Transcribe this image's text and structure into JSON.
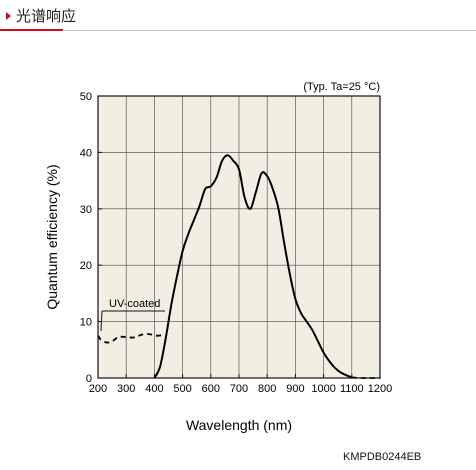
{
  "header": {
    "title": "光谱响应"
  },
  "figure_code": "KMPDB0244EB",
  "chart_data": {
    "type": "line",
    "title": "",
    "condition": "(Typ. Ta=25 °C)",
    "xlabel": "Wavelength (nm)",
    "ylabel": "Quantum efficiency (%)",
    "xlim": [
      200,
      1200
    ],
    "ylim": [
      0,
      50
    ],
    "xticks": [
      200,
      300,
      400,
      500,
      600,
      700,
      800,
      900,
      1000,
      1100,
      1200
    ],
    "yticks": [
      0,
      10,
      20,
      30,
      40,
      50
    ],
    "grid": true,
    "annotation": "UV-coated",
    "series": [
      {
        "style": "solid",
        "points": [
          [
            400,
            0
          ],
          [
            420,
            2
          ],
          [
            440,
            7
          ],
          [
            460,
            13
          ],
          [
            480,
            18
          ],
          [
            500,
            22.5
          ],
          [
            520,
            25.5
          ],
          [
            540,
            28
          ],
          [
            560,
            30.5
          ],
          [
            580,
            33.5
          ],
          [
            600,
            34
          ],
          [
            620,
            35.5
          ],
          [
            640,
            38.5
          ],
          [
            660,
            39.5
          ],
          [
            680,
            38.5
          ],
          [
            700,
            37
          ],
          [
            720,
            32
          ],
          [
            740,
            30
          ],
          [
            760,
            33
          ],
          [
            780,
            36.3
          ],
          [
            800,
            35.8
          ],
          [
            820,
            33.5
          ],
          [
            840,
            30
          ],
          [
            860,
            24
          ],
          [
            880,
            18.5
          ],
          [
            900,
            14
          ],
          [
            920,
            11.5
          ],
          [
            940,
            10
          ],
          [
            960,
            8.5
          ],
          [
            980,
            6.5
          ],
          [
            1000,
            4.5
          ],
          [
            1020,
            3
          ],
          [
            1040,
            1.8
          ],
          [
            1060,
            1
          ],
          [
            1080,
            0.5
          ],
          [
            1100,
            0.1
          ]
        ]
      },
      {
        "style": "dashed",
        "points": [
          [
            200,
            7.5
          ],
          [
            210,
            6.8
          ],
          [
            230,
            6.3
          ],
          [
            250,
            6.5
          ],
          [
            270,
            7.2
          ],
          [
            290,
            7.3
          ],
          [
            310,
            7.2
          ],
          [
            330,
            7.2
          ],
          [
            350,
            7.6
          ],
          [
            370,
            7.8
          ],
          [
            390,
            7.7
          ],
          [
            410,
            7.5
          ],
          [
            430,
            7.6
          ]
        ]
      },
      {
        "style": "dashed",
        "points": [
          [
            1100,
            0.1
          ],
          [
            1130,
            0
          ],
          [
            1200,
            0
          ]
        ]
      }
    ]
  }
}
